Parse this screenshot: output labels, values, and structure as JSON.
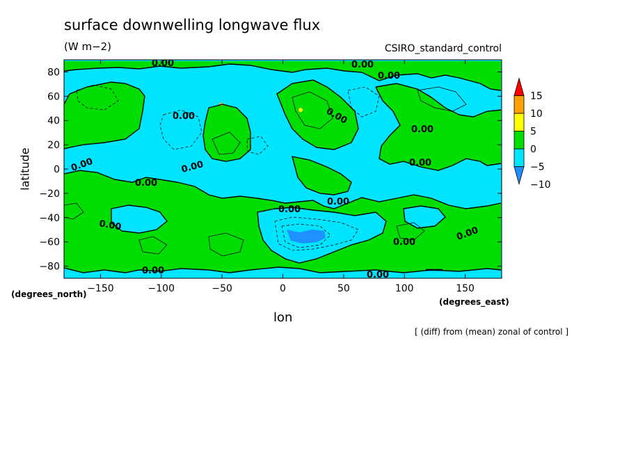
{
  "title": "surface downwelling longwave flux",
  "units": "(W m−2)",
  "dataset": "CSIRO_standard_control",
  "footnote": "[ (diff) from (mean) zonal of control ]",
  "colors": {
    "ocean_bg": "#00e5ff",
    "land": "#00dd00",
    "neg10": "#1e90ff",
    "pos10": "#ffa000",
    "pos5": "#ffff00",
    "pos15": "#ff0000"
  },
  "chart_data": {
    "type": "heatmap",
    "title": "surface downwelling longwave flux",
    "units": "(W m−2)",
    "xlabel": "lon",
    "ylabel": "latitude",
    "xunits": "(degrees_east)",
    "yunits": "(degrees_north)",
    "xlim": [
      -180,
      180
    ],
    "ylim": [
      -90,
      90
    ],
    "xticks": [
      -150,
      -100,
      -50,
      0,
      50,
      100,
      150
    ],
    "yticks": [
      -80,
      -60,
      -40,
      -20,
      0,
      20,
      40,
      60,
      80
    ],
    "colorbar": {
      "levels": [
        -10,
        -5,
        0,
        5,
        10,
        15
      ],
      "colors": [
        "#1e90ff",
        "#00e5ff",
        "#00dd00",
        "#ffff00",
        "#ffa000",
        "#ff0000"
      ],
      "labels": [
        "15",
        "10",
        "5",
        "0",
        "−5",
        "−10"
      ]
    },
    "contour_labels": [
      "0.00",
      "0.00",
      "0.00",
      "0.00",
      "0.00",
      "0.00",
      "0.00",
      "0.00",
      "0.00",
      "0.00",
      "0.00",
      "0.00",
      "0.00",
      "0.00",
      "0.00",
      "0.00",
      "0.00"
    ]
  }
}
